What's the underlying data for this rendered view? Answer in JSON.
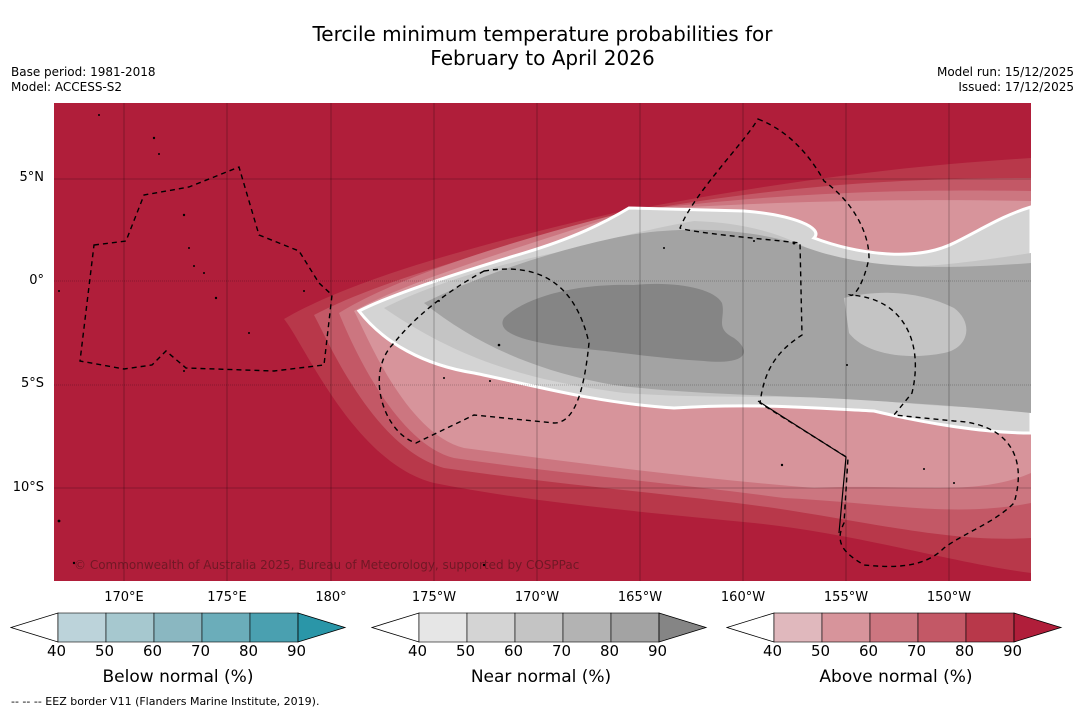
{
  "title": {
    "line1": "Tercile minimum temperature probabilities for",
    "line2": "February to April 2026"
  },
  "meta_left": {
    "base_period": "Base period: 1981-2018",
    "model": "Model: ACCESS-S2"
  },
  "meta_right": {
    "model_run": "Model run: 15/12/2025",
    "issued": "Issued: 17/12/2025"
  },
  "map": {
    "lat_labels": [
      "5°N",
      "0°",
      "5°S",
      "10°S"
    ],
    "lon_labels": [
      "170°E",
      "175°E",
      "180°",
      "175°W",
      "170°W",
      "165°W",
      "160°W",
      "155°W",
      "150°W"
    ],
    "copyright": "© Commonwealth of Australia 2025, Bureau of Meteorology, supported by COSPPac",
    "lon_range": [
      166.6,
      213.9
    ],
    "lat_range": [
      -14.5,
      8.5
    ]
  },
  "colorbars": [
    {
      "title": "Below normal (%)",
      "ticks": [
        "40",
        "50",
        "60",
        "70",
        "80",
        "90"
      ],
      "colors": [
        "#bcd3da",
        "#a6c8cf",
        "#8ab7c1",
        "#6badba",
        "#4aa0b0",
        "#2a96a8"
      ]
    },
    {
      "title": "Near normal (%)",
      "ticks": [
        "40",
        "50",
        "60",
        "70",
        "80",
        "90"
      ],
      "colors": [
        "#e6e6e6",
        "#d4d4d4",
        "#c4c4c4",
        "#b3b3b3",
        "#a3a3a3",
        "#858585"
      ]
    },
    {
      "title": "Above normal (%)",
      "ticks": [
        "40",
        "50",
        "60",
        "70",
        "80",
        "90"
      ],
      "colors": [
        "#e0b8bd",
        "#d7949b",
        "#cc7680",
        "#c35866",
        "#b8384a",
        "#b01e3a"
      ]
    }
  ],
  "colors": {
    "dominant_above": "#b01e3a",
    "land_outline": "#000000"
  },
  "footnote": "-- -- -- EEZ border V11 (Flanders Marine Institute, 2019)."
}
